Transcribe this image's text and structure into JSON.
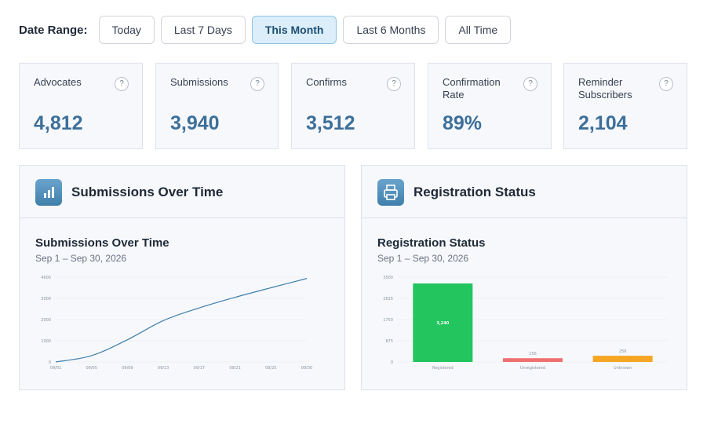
{
  "date_range": {
    "label": "Date Range:",
    "options": [
      "Today",
      "Last 7 Days",
      "This Month",
      "Last 6 Months",
      "All Time"
    ],
    "selected": "This Month"
  },
  "stats": [
    {
      "label": "Advocates",
      "value": "4,812",
      "help": "?"
    },
    {
      "label": "Submissions",
      "value": "3,940",
      "help": "?"
    },
    {
      "label": "Confirms",
      "value": "3,512",
      "help": "?"
    },
    {
      "label": "Confirmation Rate",
      "value": "89%",
      "help": "?"
    },
    {
      "label": "Reminder Subscribers",
      "value": "2,104",
      "help": "?"
    }
  ],
  "panels": {
    "submissions": {
      "header": "Submissions Over Time",
      "icon": "bar-chart-icon",
      "title": "Submissions Over Time",
      "subtitle": "Sep 1 – Sep 30, 2026"
    },
    "registration": {
      "header": "Registration Status",
      "icon": "printer-icon",
      "title": "Registration Status",
      "subtitle": "Sep 1 – Sep 30, 2026"
    }
  },
  "colors": {
    "accent": "#3d6f9a",
    "active_bg": "#dbeefa",
    "line": "#3f7fab",
    "registered": "#22c55e",
    "unregistered": "#f07070",
    "unknown": "#f5a623"
  },
  "chart_data": [
    {
      "type": "line",
      "title": "Submissions Over Time",
      "x": [
        "09/01",
        "09/05",
        "09/09",
        "09/13",
        "09/17",
        "09/21",
        "09/25",
        "09/30"
      ],
      "y": [
        0,
        300,
        1050,
        1950,
        2550,
        3050,
        3500,
        3940
      ],
      "ylim": [
        0,
        4000
      ],
      "yticks": [
        "0",
        "1000",
        "2000",
        "3000",
        "4000"
      ],
      "grid": true
    },
    {
      "type": "bar",
      "title": "Registration Status",
      "categories": [
        "Registered",
        "Unregistered",
        "Unknown"
      ],
      "values": [
        3240,
        156,
        256
      ],
      "data_labels": [
        "3,240",
        "156",
        "256"
      ],
      "ylim": [
        0,
        3500
      ],
      "yticks": [
        "0",
        "875",
        "1750",
        "2625",
        "3500"
      ],
      "grid": true
    }
  ]
}
